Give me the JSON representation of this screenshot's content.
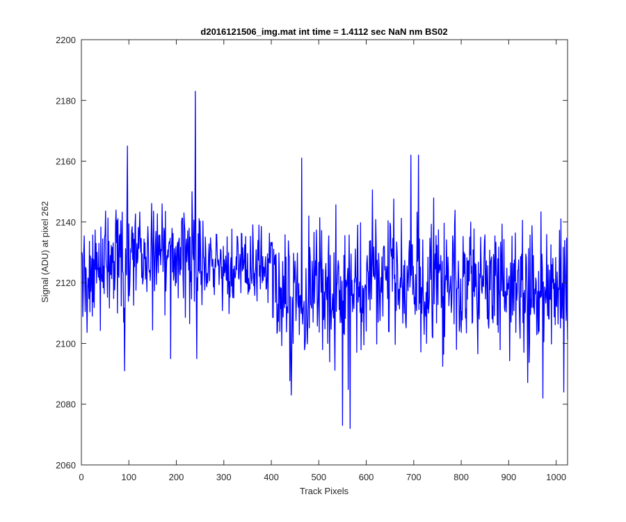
{
  "figure": {
    "background": "#ffffff"
  },
  "chart_data": {
    "type": "line",
    "title": "d2016121506_img.mat int time = 1.4112 sec  NaN nm BS02",
    "xlabel": "Track Pixels",
    "ylabel": "Signal (ADU) at pixel 262",
    "xlim": [
      0,
      1024
    ],
    "ylim": [
      2060,
      2200
    ],
    "x_ticks": [
      0,
      100,
      200,
      300,
      400,
      500,
      600,
      700,
      800,
      900,
      1000
    ],
    "y_ticks": [
      2060,
      2080,
      2100,
      2120,
      2140,
      2160,
      2180,
      2200
    ],
    "x_tick_labels": [
      "0",
      "100",
      "200",
      "300",
      "400",
      "500",
      "600",
      "700",
      "800",
      "900",
      "1000"
    ],
    "y_tick_labels": [
      "2060",
      "2080",
      "2100",
      "2120",
      "2140",
      "2160",
      "2180",
      "2200"
    ],
    "grid": false,
    "box": true,
    "series": [
      {
        "color": "#0000ff",
        "x_start": 1,
        "x_step": 1,
        "n_points": 1024,
        "notable_points": [
          {
            "x": 97,
            "y": 2165
          },
          {
            "x": 91,
            "y": 2091
          },
          {
            "x": 188,
            "y": 2095
          },
          {
            "x": 240,
            "y": 2183
          },
          {
            "x": 243,
            "y": 2095
          },
          {
            "x": 442,
            "y": 2083
          },
          {
            "x": 464,
            "y": 2161
          },
          {
            "x": 550,
            "y": 2073
          },
          {
            "x": 566,
            "y": 2072
          },
          {
            "x": 694,
            "y": 2162
          },
          {
            "x": 710,
            "y": 2162
          },
          {
            "x": 972,
            "y": 2082
          },
          {
            "x": 1010,
            "y": 2141
          },
          {
            "x": 1016,
            "y": 2084
          }
        ],
        "segments": [
          {
            "x_range": [
              1,
              100
            ],
            "mean": 2126,
            "min": 2091,
            "max": 2165
          },
          {
            "x_range": [
              100,
              250
            ],
            "mean": 2128,
            "min": 2095,
            "max": 2183
          },
          {
            "x_range": [
              250,
              400
            ],
            "mean": 2125,
            "min": 2098,
            "max": 2150
          },
          {
            "x_range": [
              400,
              600
            ],
            "mean": 2117,
            "min": 2072,
            "max": 2161
          },
          {
            "x_range": [
              600,
              800
            ],
            "mean": 2120,
            "min": 2079,
            "max": 2162
          },
          {
            "x_range": [
              800,
              1024
            ],
            "mean": 2118,
            "min": 2082,
            "max": 2157
          }
        ]
      }
    ]
  }
}
